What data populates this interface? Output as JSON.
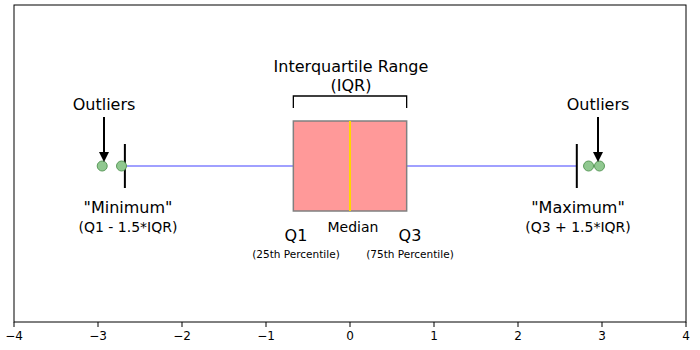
{
  "chart_data": {
    "type": "box",
    "orientation": "horizontal",
    "color": "#ff9999",
    "boxes": [
      {
        "whisker_low": -2.68,
        "q1": -0.6745,
        "median": 0,
        "q3": 0.6745,
        "whisker_high": 2.7,
        "outliers": [
          -2.95,
          -2.72,
          2.84,
          2.97
        ]
      }
    ],
    "xlim": [
      -4,
      4
    ],
    "xticks": [
      {
        "value": -4,
        "label": "−4"
      },
      {
        "value": -3,
        "label": "−3"
      },
      {
        "value": -2,
        "label": "−2"
      },
      {
        "value": -1,
        "label": "−1"
      },
      0,
      1,
      2,
      3,
      4
    ],
    "tick_labels": "x",
    "annotations": [
      "Outliers",
      "Outliers",
      "Interquartile Range",
      "(IQR)",
      "\"Minimum\"",
      "(Q1 - 1.5*IQR)",
      "Q1",
      "(25th Percentile)",
      "Median",
      "Q3",
      "(75th Percentile)",
      "\"Maximum\"",
      "(Q3 + 1.5*IQR)"
    ]
  }
}
